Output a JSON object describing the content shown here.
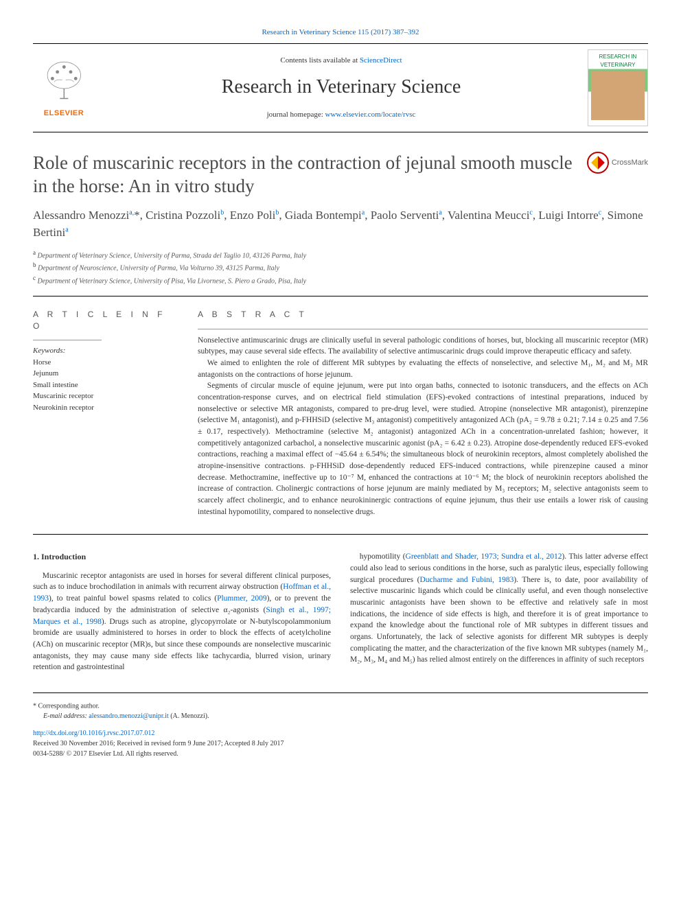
{
  "top_citation": "Research in Veterinary Science 115 (2017) 387–392",
  "header": {
    "contents_prefix": "Contents lists available at ",
    "contents_link": "ScienceDirect",
    "journal_name": "Research in Veterinary Science",
    "homepage_prefix": "journal homepage: ",
    "homepage_link": "www.elsevier.com/locate/rvsc",
    "publisher_name": "ELSEVIER",
    "cover_text_top": "RESEARCH IN",
    "cover_text_main": "VETERINARY"
  },
  "crossmark_label": "CrossMark",
  "article_title": "Role of muscarinic receptors in the contraction of jejunal smooth muscle in the horse: An in vitro study",
  "authors_html": "Alessandro Menozzi<sup>a,</sup>*, Cristina Pozzoli<sup>b</sup>, Enzo Poli<sup>b</sup>, Giada Bontempi<sup>a</sup>, Paolo Serventi<sup>a</sup>, Valentina Meucci<sup>c</sup>, Luigi Intorre<sup>c</sup>, Simone Bertini<sup>a</sup>",
  "affiliations": {
    "a": "Department of Veterinary Science, University of Parma, Strada del Taglio 10, 43126 Parma, Italy",
    "b": "Department of Neuroscience, University of Parma, Via Volturno 39, 43125 Parma, Italy",
    "c": "Department of Veterinary Science, University of Pisa, Via Livornese, S. Piero a Grado, Pisa, Italy"
  },
  "article_info_heading": "A R T I C L E  I N F O",
  "abstract_heading": "A B S T R A C T",
  "keywords_label": "Keywords:",
  "keywords": [
    "Horse",
    "Jejunum",
    "Small intestine",
    "Muscarinic receptor",
    "Neurokinin receptor"
  ],
  "abstract_paragraphs": [
    "Nonselective antimuscarinic drugs are clinically useful in several pathologic conditions of horses, but, blocking all muscarinic receptor (MR) subtypes, may cause several side effects. The availability of selective antimuscarinic drugs could improve therapeutic efficacy and safety.",
    "We aimed to enlighten the role of different MR subtypes by evaluating the effects of nonselective, and selective M₁, M₂ and M₃ MR antagonists on the contractions of horse jejunum.",
    "Segments of circular muscle of equine jejunum, were put into organ baths, connected to isotonic transducers, and the effects on ACh concentration-response curves, and on electrical field stimulation (EFS)-evoked contractions of intestinal preparations, induced by nonselective or selective MR antagonists, compared to pre-drug level, were studied. Atropine (nonselective MR antagonist), pirenzepine (selective M₁ antagonist), and p-FHHSiD (selective M₃ antagonist) competitively antagonized ACh (pA₂ = 9.78 ± 0.21; 7.14 ± 0.25 and 7.56 ± 0.17, respectively). Methoctramine (selective M₂ antagonist) antagonized ACh in a concentration-unrelated fashion; however, it competitively antagonized carbachol, a nonselective muscarinic agonist (pA₂ = 6.42 ± 0.23). Atropine dose-dependently reduced EFS-evoked contractions, reaching a maximal effect of −45.64 ± 6.54%; the simultaneous block of neurokinin receptors, almost completely abolished the atropine-insensitive contractions. p-FHHSiD dose-dependently reduced EFS-induced contractions, while pirenzepine caused a minor decrease. Methoctramine, ineffective up to 10⁻⁷ M, enhanced the contractions at 10⁻⁶ M; the block of neurokinin receptors abolished the increase of contraction. Cholinergic contractions of horse jejunum are mainly mediated by M₃ receptors; M₂ selective antagonists seem to scarcely affect cholinergic, and to enhance neurokininergic contractions of equine jejunum, thus their use entails a lower risk of causing intestinal hypomotility, compared to nonselective drugs."
  ],
  "intro_heading": "1. Introduction",
  "intro_col1": "Muscarinic receptor antagonists are used in horses for several different clinical purposes, such as to induce brochodilation in animals with recurrent airway obstruction (<a>Hoffman et al., 1993</a>), to treat painful bowel spasms related to colics (<a>Plummer, 2009</a>), or to prevent the bradycardia induced by the administration of selective α₂-agonists (<a>Singh et al., 1997; Marques et al., 1998</a>). Drugs such as atropine, glycopyrrolate or N-butylscopolammonium bromide are usually administered to horses in order to block the effects of acetylcholine (ACh) on muscarinic receptor (MR)s, but since these compounds are nonselective muscarinic antagonists, they may cause many side effects like tachycardia, blurred vision, urinary retention and gastrointestinal",
  "intro_col2": "hypomotility (<a>Greenblatt and Shader, 1973; Sundra et al., 2012</a>). This latter adverse effect could also lead to serious conditions in the horse, such as paralytic ileus, especially following surgical procedures (<a>Ducharme and Fubini, 1983</a>). There is, to date, poor availability of selective muscarinic ligands which could be clinically useful, and even though nonselective muscarinic antagonists have been shown to be effective and relatively safe in most indications, the incidence of side effects is high, and therefore it is of great importance to expand the knowledge about the functional role of MR subtypes in different tissues and organs. Unfortunately, the lack of selective agonists for different MR subtypes is deeply complicating the matter, and the characterization of the five known MR subtypes (namely M₁, M₂, M₃, M₄ and M₅) has relied almost entirely on the differences in affinity of such receptors",
  "footer": {
    "corr_label": "* Corresponding author.",
    "email_label": "E-mail address:",
    "email": "alessandro.menozzi@unipr.it",
    "email_name": "(A. Menozzi).",
    "doi": "http://dx.doi.org/10.1016/j.rvsc.2017.07.012",
    "received": "Received 30 November 2016; Received in revised form 9 June 2017; Accepted 8 July 2017",
    "copyright": "0034-5288/ © 2017 Elsevier Ltd. All rights reserved."
  },
  "colors": {
    "link": "#0066cc",
    "elsevier_orange": "#ff6600",
    "heading_gray": "#4a4a4a"
  }
}
